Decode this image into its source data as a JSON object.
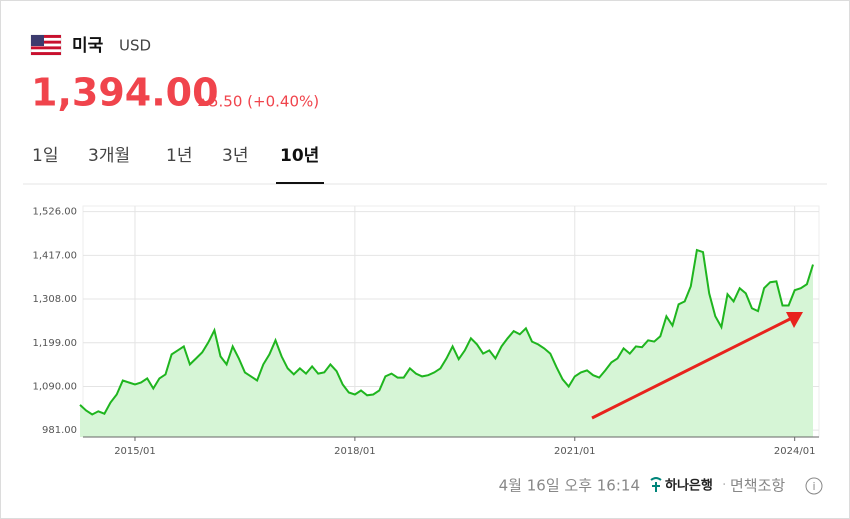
{
  "header": {
    "country": "미국",
    "currency": "USD",
    "price": "1,394.00",
    "change": "5.50 (+0.40%)"
  },
  "tabs": [
    "1일",
    "3개월",
    "1년",
    "3년",
    "10년"
  ],
  "chart_data": {
    "type": "area",
    "color": "#1fb51f",
    "fill": "#d6f5d6",
    "x": [
      "2014/04",
      "2014/05",
      "2014/06",
      "2014/07",
      "2014/08",
      "2014/09",
      "2014/10",
      "2014/11",
      "2014/12",
      "2015/01",
      "2015/02",
      "2015/03",
      "2015/04",
      "2015/05",
      "2015/06",
      "2015/07",
      "2015/08",
      "2015/09",
      "2015/10",
      "2015/11",
      "2015/12",
      "2016/01",
      "2016/02",
      "2016/03",
      "2016/04",
      "2016/05",
      "2016/06",
      "2016/07",
      "2016/08",
      "2016/09",
      "2016/10",
      "2016/11",
      "2016/12",
      "2017/01",
      "2017/02",
      "2017/03",
      "2017/04",
      "2017/05",
      "2017/06",
      "2017/07",
      "2017/08",
      "2017/09",
      "2017/10",
      "2017/11",
      "2017/12",
      "2018/01",
      "2018/02",
      "2018/03",
      "2018/04",
      "2018/05",
      "2018/06",
      "2018/07",
      "2018/08",
      "2018/09",
      "2018/10",
      "2018/11",
      "2018/12",
      "2019/01",
      "2019/02",
      "2019/03",
      "2019/04",
      "2019/05",
      "2019/06",
      "2019/07",
      "2019/08",
      "2019/09",
      "2019/10",
      "2019/11",
      "2019/12",
      "2020/01",
      "2020/02",
      "2020/03",
      "2020/04",
      "2020/05",
      "2020/06",
      "2020/07",
      "2020/08",
      "2020/09",
      "2020/10",
      "2020/11",
      "2020/12",
      "2021/01",
      "2021/02",
      "2021/03",
      "2021/04",
      "2021/05",
      "2021/06",
      "2021/07",
      "2021/08",
      "2021/09",
      "2021/10",
      "2021/11",
      "2021/12",
      "2022/01",
      "2022/02",
      "2022/03",
      "2022/04",
      "2022/05",
      "2022/06",
      "2022/07",
      "2022/08",
      "2022/09",
      "2022/10",
      "2022/11",
      "2022/12",
      "2023/01",
      "2023/02",
      "2023/03",
      "2023/04",
      "2023/05",
      "2023/06",
      "2023/07",
      "2023/08",
      "2023/09",
      "2023/10",
      "2023/11",
      "2023/12",
      "2024/01",
      "2024/02",
      "2024/03",
      "2024/04"
    ],
    "values": [
      1044,
      1030,
      1020,
      1028,
      1022,
      1050,
      1070,
      1105,
      1100,
      1095,
      1100,
      1110,
      1085,
      1110,
      1120,
      1170,
      1180,
      1190,
      1145,
      1160,
      1175,
      1200,
      1230,
      1165,
      1145,
      1190,
      1160,
      1125,
      1115,
      1105,
      1145,
      1170,
      1205,
      1165,
      1135,
      1120,
      1135,
      1122,
      1140,
      1122,
      1125,
      1145,
      1128,
      1095,
      1075,
      1070,
      1080,
      1068,
      1070,
      1080,
      1115,
      1122,
      1112,
      1112,
      1135,
      1122,
      1115,
      1118,
      1125,
      1135,
      1160,
      1190,
      1158,
      1180,
      1210,
      1195,
      1172,
      1180,
      1160,
      1190,
      1210,
      1228,
      1220,
      1235,
      1202,
      1195,
      1185,
      1172,
      1138,
      1108,
      1090,
      1115,
      1125,
      1130,
      1118,
      1112,
      1130,
      1150,
      1160,
      1185,
      1172,
      1190,
      1188,
      1205,
      1202,
      1215,
      1265,
      1242,
      1295,
      1302,
      1340,
      1430,
      1425,
      1322,
      1265,
      1238,
      1320,
      1302,
      1335,
      1322,
      1285,
      1278,
      1335,
      1350,
      1352,
      1292,
      1292,
      1330,
      1335,
      1345,
      1394
    ],
    "ylim": [
      964,
      1540
    ],
    "yticks": [
      {
        "value": 981,
        "label": "981.00"
      },
      {
        "value": 1090,
        "label": "1,090.00"
      },
      {
        "value": 1199,
        "label": "1,199.00"
      },
      {
        "value": 1308,
        "label": "1,308.00"
      },
      {
        "value": 1417,
        "label": "1,417.00"
      },
      {
        "value": 1526,
        "label": "1,526.00"
      }
    ],
    "xticks": [
      "2015/01",
      "2018/01",
      "2021/01",
      "2024/01"
    ],
    "grid": true
  },
  "footer": {
    "timestamp": "4월 16일 오후 16:14",
    "bank": "하나은행",
    "disclaimer": "면책조항"
  }
}
